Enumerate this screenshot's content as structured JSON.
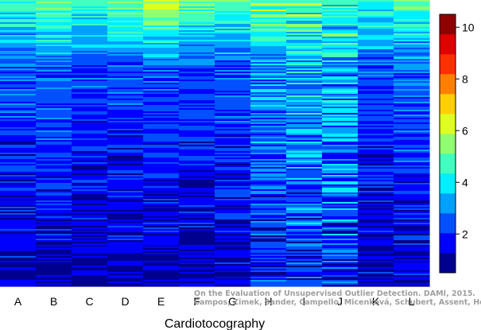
{
  "chart_data": {
    "type": "heatmap",
    "title": "",
    "xlabel": "Cardiotocography",
    "ylabel": "",
    "categories": [
      "A",
      "B",
      "C",
      "D",
      "E",
      "F",
      "G",
      "H",
      "I",
      "J",
      "K",
      "L"
    ],
    "colorbar": {
      "ticks": [
        2,
        4,
        6,
        8,
        10
      ],
      "range": [
        0.5,
        10.5
      ],
      "colors": [
        "#00008f",
        "#0000ff",
        "#0050ff",
        "#00a0ff",
        "#00efff",
        "#40ffbf",
        "#90ff70",
        "#dfff20",
        "#ffcf00",
        "#ff8000",
        "#ff3000",
        "#df0000",
        "#8f0000"
      ]
    },
    "column_profiles": [
      {
        "name": "A",
        "top": 4.5,
        "mid": 2.4,
        "bottom": 1.2,
        "spread": 0.8
      },
      {
        "name": "B",
        "top": 5.0,
        "mid": 2.5,
        "bottom": 1.2,
        "spread": 0.8
      },
      {
        "name": "C",
        "top": 4.6,
        "mid": 2.2,
        "bottom": 1.1,
        "spread": 0.7
      },
      {
        "name": "D",
        "top": 5.2,
        "mid": 2.3,
        "bottom": 1.2,
        "spread": 0.8
      },
      {
        "name": "E",
        "top": 5.9,
        "mid": 2.3,
        "bottom": 1.2,
        "spread": 0.7
      },
      {
        "name": "F",
        "top": 5.0,
        "mid": 2.2,
        "bottom": 1.1,
        "spread": 0.8
      },
      {
        "name": "G",
        "top": 4.8,
        "mid": 2.4,
        "bottom": 1.2,
        "spread": 0.8
      },
      {
        "name": "H",
        "top": 5.2,
        "mid": 3.0,
        "bottom": 1.8,
        "spread": 1.1
      },
      {
        "name": "I",
        "top": 4.9,
        "mid": 3.4,
        "bottom": 2.0,
        "spread": 1.4
      },
      {
        "name": "J",
        "top": 4.8,
        "mid": 3.4,
        "bottom": 2.0,
        "spread": 1.5
      },
      {
        "name": "K",
        "top": 4.5,
        "mid": 2.3,
        "bottom": 1.2,
        "spread": 0.8
      },
      {
        "name": "L",
        "top": 4.8,
        "mid": 2.5,
        "bottom": 1.3,
        "spread": 0.9
      }
    ]
  },
  "credit": {
    "line1": "On the Evaluation of Unsupervised Outlier Detection. DAMI, 2015.",
    "line2": "Campos, Zimek, Sander, Campello, Micenková, Schubert, Assent, Houle"
  }
}
